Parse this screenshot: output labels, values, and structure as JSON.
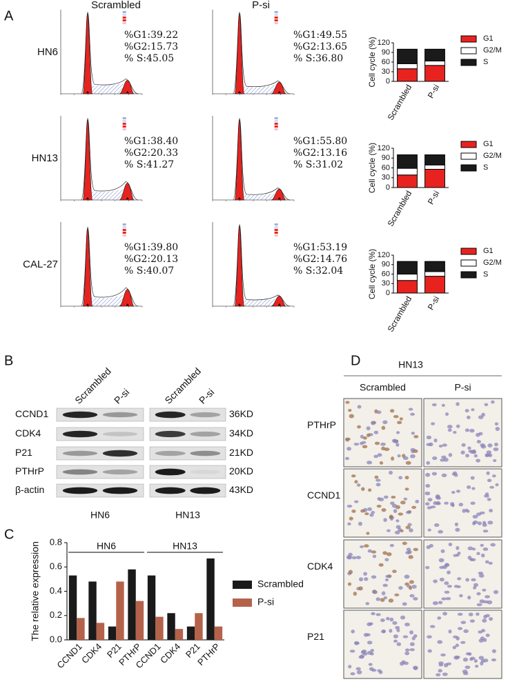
{
  "panel_labels": [
    "A",
    "B",
    "C",
    "D"
  ],
  "panel_a": {
    "columns": [
      "Scrambled",
      "P-si"
    ],
    "rows": [
      {
        "label": "HN6",
        "stats": [
          [
            "%G1:39.22",
            "%G2:15.73",
            "% S:45.05"
          ],
          [
            "%G1:49.55",
            "%G2:13.65",
            "% S:36.80"
          ]
        ]
      },
      {
        "label": "HN13",
        "stats": [
          [
            "%G1:38.40",
            "%G2:20.33",
            "% S:41.27"
          ],
          [
            "%G1:55.80",
            "%G2:13.16",
            "% S:31.02"
          ]
        ]
      },
      {
        "label": "CAL-27",
        "stats": [
          [
            "%G1:39.80",
            "%G2:20.13",
            "% S:40.07"
          ],
          [
            "%G1:53.19",
            "%G2:14.76",
            "% S:32.04"
          ]
        ]
      }
    ]
  },
  "chart_data": [
    {
      "type": "stacked_bar",
      "ylabel": "Cell cycle (%)",
      "categories": [
        "Scrambled",
        "P-si"
      ],
      "series": [
        {
          "name": "G1",
          "color": "#e8231f",
          "values": [
            39.22,
            49.55
          ]
        },
        {
          "name": "G2/M",
          "color": "#ffffff",
          "values": [
            15.73,
            13.65
          ]
        },
        {
          "name": "S",
          "color": "#1a1a1a",
          "values": [
            45.05,
            36.8
          ]
        }
      ],
      "ylim": [
        0,
        120
      ],
      "yticks": [
        0,
        30,
        60,
        90,
        120
      ]
    },
    {
      "type": "stacked_bar",
      "ylabel": "Cell cycle (%)",
      "categories": [
        "Scrambled",
        "P-si"
      ],
      "series": [
        {
          "name": "G1",
          "color": "#e8231f",
          "values": [
            38.4,
            55.8
          ]
        },
        {
          "name": "G2/M",
          "color": "#ffffff",
          "values": [
            20.33,
            13.16
          ]
        },
        {
          "name": "S",
          "color": "#1a1a1a",
          "values": [
            41.27,
            31.02
          ]
        }
      ],
      "ylim": [
        0,
        120
      ],
      "yticks": [
        0,
        30,
        60,
        90,
        120
      ]
    },
    {
      "type": "stacked_bar",
      "ylabel": "Cell cycle (%)",
      "categories": [
        "Scrambled",
        "P-si"
      ],
      "series": [
        {
          "name": "G1",
          "color": "#e8231f",
          "values": [
            39.8,
            53.19
          ]
        },
        {
          "name": "G2/M",
          "color": "#ffffff",
          "values": [
            20.13,
            14.76
          ]
        },
        {
          "name": "S",
          "color": "#1a1a1a",
          "values": [
            40.07,
            32.04
          ]
        }
      ],
      "ylim": [
        0,
        120
      ],
      "yticks": [
        0,
        30,
        60,
        90,
        120
      ]
    },
    {
      "type": "grouped_bar",
      "ylabel": "The relative expression",
      "categories": [
        "CCND1",
        "CDK4",
        "P21",
        "PTHrP",
        "CCND1",
        "CDK4",
        "P21",
        "PTHrP"
      ],
      "groups": [
        "HN6",
        "HN13"
      ],
      "series": [
        {
          "name": "Scrambled",
          "color": "#1a1a1a",
          "values": [
            0.53,
            0.48,
            0.11,
            0.58,
            0.53,
            0.22,
            0.11,
            0.67
          ]
        },
        {
          "name": "P-si",
          "color": "#b5624a",
          "values": [
            0.18,
            0.14,
            0.48,
            0.32,
            0.19,
            0.09,
            0.22,
            0.11
          ]
        }
      ],
      "ylim": [
        0,
        0.8
      ],
      "yticks": [
        {
          "value": 0,
          "label": "0.0"
        },
        0.2,
        0.4,
        0.6,
        0.8
      ]
    }
  ],
  "panel_b": {
    "columns": [
      "Scrambled",
      "P-si"
    ],
    "proteins": [
      "CCND1",
      "CDK4",
      "P21",
      "PTHrP",
      "β-actin"
    ],
    "sizes": [
      "36KD",
      "34KD",
      "21KD",
      "20KD",
      "43KD"
    ],
    "cell_lines": [
      "HN6",
      "HN13"
    ]
  },
  "panel_d": {
    "title": "HN13",
    "columns": [
      "Scrambled",
      "P-si"
    ],
    "rows": [
      "PTHrP",
      "CCND1",
      "CDK4",
      "P21"
    ]
  }
}
